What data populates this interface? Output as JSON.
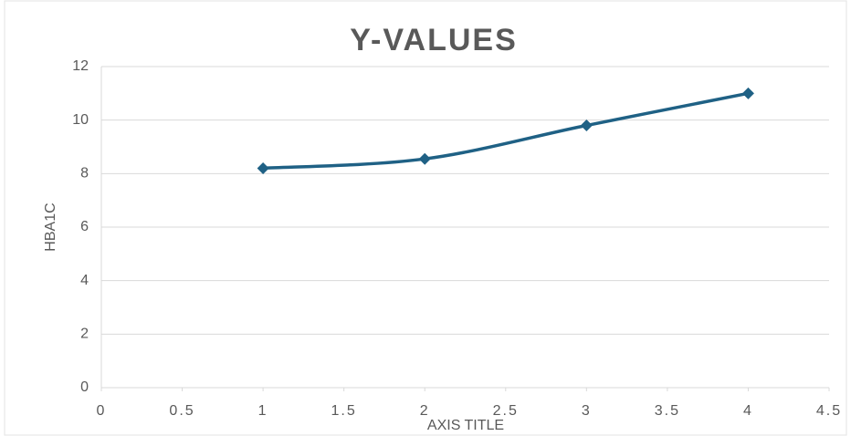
{
  "chart_data": {
    "type": "line",
    "title": "Y-VALUES",
    "x_label": "AXIS TITLE",
    "y_label": "HBA1C",
    "x": [
      1,
      2,
      3,
      4
    ],
    "series": [
      {
        "name": "Y-VALUES",
        "color": "#1f6185",
        "values": [
          8.2,
          8.55,
          9.8,
          11
        ]
      }
    ],
    "xlim": [
      0,
      4.5
    ],
    "xticks": [
      0,
      0.5,
      1,
      1.5,
      2,
      2.5,
      3,
      3.5,
      4,
      4.5
    ],
    "ylim": [
      0,
      12
    ],
    "yticks": [
      0,
      2,
      4,
      6,
      8,
      10,
      12
    ],
    "grid": true,
    "smooth": true,
    "marker": "diamond"
  }
}
